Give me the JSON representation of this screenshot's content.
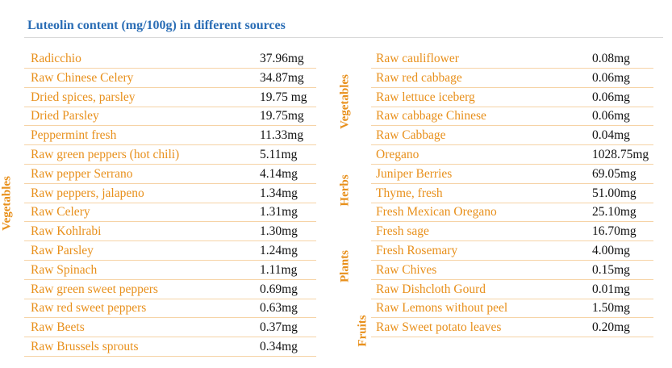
{
  "header": {
    "title": "Luteolin content (mg/100g) in different sources"
  },
  "left": {
    "group": "Vegetables",
    "rows": [
      [
        "Radicchio",
        "37.96mg"
      ],
      [
        "Raw Chinese Celery",
        "34.87mg"
      ],
      [
        "Dried spices, parsley",
        "19.75 mg"
      ],
      [
        "Dried Parsley",
        "19.75mg"
      ],
      [
        "Peppermint fresh",
        "11.33mg"
      ],
      [
        "Raw green peppers (hot chili)",
        "5.11mg"
      ],
      [
        "Raw pepper Serrano",
        "4.14mg"
      ],
      [
        "Raw peppers, jalapeno",
        "1.34mg"
      ],
      [
        "Raw Celery",
        "1.31mg"
      ],
      [
        "Raw Kohlrabi",
        "1.30mg"
      ],
      [
        "Raw Parsley",
        "1.24mg"
      ],
      [
        "Raw Spinach",
        "1.11mg"
      ],
      [
        "Raw green sweet peppers",
        "0.69mg"
      ],
      [
        "Raw red sweet peppers",
        "0.63mg"
      ],
      [
        "Raw Beets",
        "0.37mg"
      ],
      [
        "Raw Brussels sprouts",
        "0.34mg"
      ]
    ]
  },
  "right": {
    "groups": [
      {
        "label": "Vegetables",
        "rows": [
          [
            "Raw cauliflower",
            "0.08mg"
          ],
          [
            "Raw red cabbage",
            "0.06mg"
          ],
          [
            "Raw lettuce iceberg",
            "0.06mg"
          ],
          [
            "Raw cabbage Chinese",
            "0.06mg"
          ],
          [
            "Raw Cabbage",
            "0.04mg"
          ]
        ]
      },
      {
        "label": "Herbs",
        "rows": [
          [
            "Oregano",
            "1028.75mg"
          ],
          [
            "Juniper Berries",
            "69.05mg"
          ],
          [
            "Thyme, fresh",
            "51.00mg"
          ],
          [
            "Fresh Mexican Oregano",
            "25.10mg"
          ],
          [
            "Fresh sage",
            "16.70mg"
          ],
          [
            "Fresh Rosemary",
            "4.00mg"
          ]
        ]
      },
      {
        "label": "Plants",
        "rows": [
          [
            "Raw Chives",
            "0.15mg"
          ],
          [
            "Raw Dishcloth Gourd",
            "0.01mg"
          ]
        ]
      },
      {
        "label": "Fruits",
        "rows": [
          [
            "Raw Lemons without peel",
            "1.50mg"
          ],
          [
            "Raw Sweet potato leaves",
            "0.20mg"
          ]
        ]
      }
    ]
  }
}
